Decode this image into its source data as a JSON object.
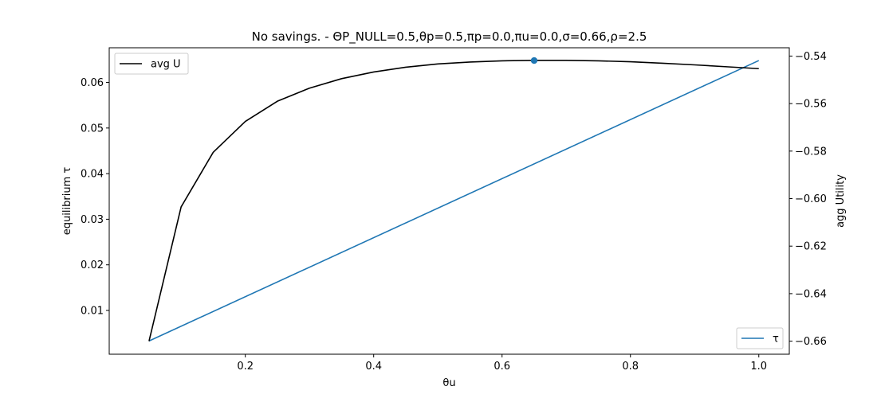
{
  "chart_data": {
    "type": "line",
    "title": "No savings. - ΘP_NULL=0.5,θp=0.5,πp=0.0,πu=0.0,σ=0.66,ρ=2.5",
    "xlabel": "θu",
    "ylabel_left": "equilibrium τ",
    "ylabel_right": "agg Utility",
    "xlim": [
      -0.012,
      1.0475
    ],
    "ylim_left": [
      0.0004,
      0.0676
    ],
    "ylim_right": [
      -0.6655,
      -0.5365
    ],
    "x_ticks": [
      0.2,
      0.4,
      0.6,
      0.8,
      1.0
    ],
    "x_tick_labels": [
      "0.2",
      "0.4",
      "0.6",
      "0.8",
      "1.0"
    ],
    "y_left_ticks": [
      0.01,
      0.02,
      0.03,
      0.04,
      0.05,
      0.06
    ],
    "y_left_tick_labels": [
      "0.01",
      "0.02",
      "0.03",
      "0.04",
      "0.05",
      "0.06"
    ],
    "y_right_ticks": [
      -0.66,
      -0.64,
      -0.62,
      -0.6,
      -0.58,
      -0.56,
      -0.54
    ],
    "y_right_tick_labels": [
      "−0.66",
      "−0.64",
      "−0.62",
      "−0.60",
      "−0.58",
      "−0.56",
      "−0.54"
    ],
    "grid": false,
    "series": [
      {
        "name": "τ",
        "axis": "left",
        "color": "#1f77b4",
        "x": [
          0.05,
          1.0
        ],
        "y": [
          0.0033,
          0.0648
        ]
      },
      {
        "name": "avg U",
        "axis": "right",
        "color": "#000000",
        "x": [
          0.05,
          0.1,
          0.15,
          0.2,
          0.25,
          0.3,
          0.35,
          0.4,
          0.45,
          0.5,
          0.55,
          0.6,
          0.65,
          0.7,
          0.75,
          0.8,
          0.85,
          0.9,
          0.95,
          1.0
        ],
        "y": [
          -0.66,
          -0.6035,
          -0.5805,
          -0.5675,
          -0.559,
          -0.5535,
          -0.5495,
          -0.5467,
          -0.5447,
          -0.5433,
          -0.5425,
          -0.542,
          -0.5418,
          -0.5418,
          -0.542,
          -0.5424,
          -0.543,
          -0.5437,
          -0.5445,
          -0.5453
        ]
      }
    ],
    "marker": {
      "x": 0.65,
      "y": 0.0648,
      "axis": "left",
      "color": "#1f77b4"
    },
    "legends": [
      {
        "label": "avg U",
        "color": "#000000",
        "position": "upper-left"
      },
      {
        "label": "τ",
        "color": "#1f77b4",
        "position": "lower-right"
      }
    ]
  }
}
